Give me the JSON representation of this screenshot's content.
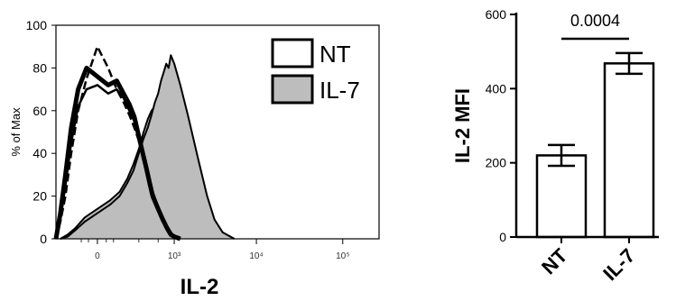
{
  "chart_data": [
    {
      "type": "area",
      "ylabel": "% of Max",
      "xlabel": "IL-2",
      "ylim": [
        0,
        100
      ],
      "yticks": [
        "0",
        "20",
        "40",
        "60",
        "80",
        "100"
      ],
      "xticks": [
        {
          "label": "0",
          "x": 0
        },
        {
          "label": "10³",
          "x": 1000
        },
        {
          "label": "10⁴",
          "x": 10000
        },
        {
          "label": "10⁵",
          "x": 100000
        }
      ],
      "x_scale": "biexponential",
      "x_range": [
        -300,
        262144
      ],
      "legend_position": "top-right",
      "legend": [
        {
          "label": "NT",
          "fill": "#ffffff"
        },
        {
          "label": "IL-7",
          "fill": "#bdbdbd"
        }
      ],
      "series": [
        {
          "name": "IL-7",
          "fill": "#bdbdbd",
          "x": [
            -250,
            -180,
            -120,
            -60,
            0,
            60,
            120,
            180,
            240,
            300,
            360,
            420,
            480,
            540,
            600,
            660,
            720,
            780,
            840,
            900,
            1000,
            1200,
            1500,
            2000,
            2600,
            3200,
            4000,
            5500
          ],
          "y": [
            0,
            2,
            5,
            10,
            14,
            18,
            22,
            28,
            35,
            42,
            50,
            56,
            60,
            62,
            66,
            72,
            76,
            80,
            78,
            84,
            80,
            70,
            55,
            35,
            18,
            8,
            3,
            0
          ]
        },
        {
          "name": "IL-7",
          "fill": "#bdbdbd",
          "x": [
            -250,
            -180,
            -120,
            -60,
            0,
            60,
            120,
            180,
            240,
            300,
            360,
            420,
            480,
            540,
            600,
            660,
            720,
            780,
            840,
            900,
            1000,
            1200,
            1500,
            2000,
            2600,
            3200,
            4000,
            5500
          ],
          "y": [
            0,
            1,
            4,
            8,
            12,
            16,
            20,
            26,
            32,
            40,
            47,
            52,
            58,
            64,
            68,
            74,
            78,
            82,
            80,
            86,
            82,
            72,
            58,
            38,
            20,
            9,
            3,
            0
          ]
        },
        {
          "name": "NT",
          "fill": "none",
          "x": [
            -300,
            -250,
            -200,
            -150,
            -100,
            -50,
            0,
            50,
            100,
            150,
            200,
            250,
            300,
            350,
            400,
            450,
            500,
            600,
            700,
            800,
            900,
            1000,
            1200
          ],
          "y": [
            0,
            10,
            25,
            45,
            62,
            70,
            72,
            68,
            70,
            66,
            60,
            55,
            50,
            42,
            35,
            28,
            22,
            15,
            10,
            6,
            3,
            1,
            0
          ]
        },
        {
          "name": "NT",
          "fill": "none",
          "x": [
            -300,
            -250,
            -200,
            -150,
            -100,
            -50,
            0,
            50,
            100,
            150,
            200,
            250,
            300,
            350,
            400,
            450,
            500,
            600,
            700,
            800,
            900,
            1000,
            1200
          ],
          "y": [
            0,
            12,
            30,
            52,
            70,
            80,
            76,
            72,
            74,
            68,
            63,
            57,
            48,
            40,
            33,
            26,
            20,
            14,
            9,
            5,
            2,
            1,
            0
          ]
        },
        {
          "name": "NT",
          "fill": "none",
          "x": [
            -300,
            -250,
            -200,
            -150,
            -100,
            -50,
            0,
            50,
            100,
            150,
            200,
            250,
            300,
            350,
            400,
            450,
            500,
            600,
            700,
            800,
            900,
            1000,
            1200
          ],
          "y": [
            0,
            8,
            20,
            40,
            60,
            75,
            90,
            80,
            70,
            64,
            58,
            52,
            46,
            40,
            32,
            25,
            19,
            13,
            8,
            5,
            2,
            1,
            0
          ]
        }
      ]
    },
    {
      "type": "bar",
      "ylabel": "IL-2 MFI",
      "categories": [
        "NT",
        "IL-7"
      ],
      "values": [
        220,
        468
      ],
      "error": [
        28,
        28
      ],
      "ylim": [
        0,
        600
      ],
      "yticks": [
        0,
        200,
        400,
        600
      ],
      "bar_fill": "#ffffff",
      "annotation": {
        "text": "0.0004",
        "between": [
          "NT",
          "IL-7"
        ]
      }
    }
  ]
}
